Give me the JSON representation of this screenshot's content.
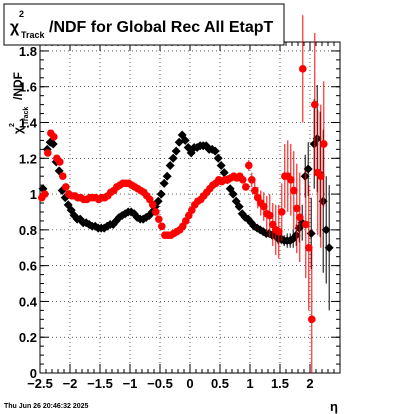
{
  "chart_data": {
    "type": "scatter",
    "title": {
      "chi": "χ",
      "sup": "2",
      "sub": "Track",
      "rest": "/NDF for Global Rec All EtapT"
    },
    "ylabel": {
      "chi": "χ",
      "sup": "2",
      "sub": "Track",
      "rest": "/NDF"
    },
    "xlabel": "η",
    "timestamp": "Thu Jun 26 20:46:32 2025",
    "xlim": [
      -2.5,
      2.5
    ],
    "ylim": [
      0,
      1.85
    ],
    "grid": true,
    "x_ticks": [
      {
        "value": -2.5,
        "label": "−2.5"
      },
      {
        "value": -2,
        "label": "−2"
      },
      {
        "value": -1.5,
        "label": "−1.5"
      },
      {
        "value": -1,
        "label": "−1"
      },
      {
        "value": -0.5,
        "label": "−0.5"
      },
      {
        "value": 0,
        "label": "0"
      },
      {
        "value": 0.5,
        "label": "0.5"
      },
      {
        "value": 1,
        "label": "1"
      },
      {
        "value": 1.5,
        "label": "1.5"
      },
      {
        "value": 2,
        "label": "2"
      }
    ],
    "y_ticks": [
      {
        "value": 0,
        "label": "0"
      },
      {
        "value": 0.2,
        "label": "0.2"
      },
      {
        "value": 0.4,
        "label": "0.4"
      },
      {
        "value": 0.6,
        "label": "0.6"
      },
      {
        "value": 0.8,
        "label": "0.8"
      },
      {
        "value": 1,
        "label": "1"
      },
      {
        "value": 1.2,
        "label": "1.2"
      },
      {
        "value": 1.4,
        "label": "1.4"
      },
      {
        "value": 1.6,
        "label": "1.6"
      },
      {
        "value": 1.8,
        "label": "1.8"
      }
    ],
    "series": [
      {
        "color": "#000000",
        "marker": "diamond",
        "x": [
          -2.45,
          -2.38,
          -2.33,
          -2.28,
          -2.23,
          -2.18,
          -2.13,
          -2.08,
          -2.03,
          -1.98,
          -1.93,
          -1.88,
          -1.83,
          -1.78,
          -1.73,
          -1.68,
          -1.63,
          -1.58,
          -1.53,
          -1.48,
          -1.43,
          -1.38,
          -1.33,
          -1.28,
          -1.23,
          -1.18,
          -1.13,
          -1.08,
          -1.03,
          -0.98,
          -0.93,
          -0.88,
          -0.83,
          -0.78,
          -0.73,
          -0.68,
          -0.63,
          -0.58,
          -0.53,
          -0.48,
          -0.43,
          -0.38,
          -0.33,
          -0.28,
          -0.23,
          -0.18,
          -0.13,
          -0.08,
          -0.03,
          0.02,
          0.07,
          0.12,
          0.17,
          0.22,
          0.27,
          0.32,
          0.37,
          0.42,
          0.47,
          0.52,
          0.57,
          0.62,
          0.67,
          0.72,
          0.77,
          0.82,
          0.87,
          0.92,
          0.97,
          1.02,
          1.07,
          1.12,
          1.17,
          1.22,
          1.27,
          1.32,
          1.37,
          1.42,
          1.47,
          1.52,
          1.57,
          1.62,
          1.67,
          1.72,
          1.77,
          1.82,
          1.87,
          1.92,
          1.97,
          2.02,
          2.07,
          2.12,
          2.17,
          2.22,
          2.27,
          2.32
        ],
        "y": [
          1.03,
          1.25,
          1.29,
          1.28,
          1.18,
          1.13,
          1.02,
          0.98,
          0.94,
          0.91,
          0.88,
          0.86,
          0.86,
          0.84,
          0.84,
          0.83,
          0.82,
          0.82,
          0.81,
          0.81,
          0.81,
          0.82,
          0.83,
          0.83,
          0.85,
          0.87,
          0.88,
          0.89,
          0.9,
          0.9,
          0.89,
          0.87,
          0.86,
          0.86,
          0.87,
          0.88,
          0.9,
          0.93,
          0.96,
          1.0,
          1.06,
          1.1,
          1.16,
          1.2,
          1.24,
          1.29,
          1.33,
          1.3,
          1.26,
          1.23,
          1.26,
          1.26,
          1.27,
          1.27,
          1.27,
          1.25,
          1.25,
          1.24,
          1.2,
          1.16,
          1.12,
          1.08,
          1.03,
          1.0,
          0.96,
          0.93,
          0.89,
          0.87,
          0.86,
          0.84,
          0.82,
          0.81,
          0.8,
          0.79,
          0.78,
          0.78,
          0.77,
          0.77,
          0.75,
          0.75,
          0.74,
          0.74,
          0.74,
          0.75,
          0.77,
          0.81,
          0.84,
          1.1,
          1.14,
          0.78,
          1.28,
          1.31,
          1.11,
          0.96,
          0.8,
          0.7
        ],
        "err": [
          0,
          0,
          0,
          0,
          0,
          0,
          0,
          0,
          0,
          0,
          0,
          0,
          0,
          0,
          0,
          0,
          0,
          0,
          0,
          0,
          0,
          0,
          0,
          0,
          0,
          0,
          0,
          0,
          0,
          0,
          0,
          0,
          0,
          0,
          0,
          0,
          0,
          0,
          0,
          0,
          0,
          0,
          0,
          0,
          0,
          0,
          0,
          0,
          0,
          0,
          0,
          0,
          0,
          0,
          0,
          0,
          0,
          0,
          0,
          0,
          0,
          0,
          0,
          0,
          0,
          0,
          0,
          0,
          0,
          0,
          0,
          0,
          0,
          0,
          0,
          0.02,
          0.02,
          0.03,
          0.03,
          0.03,
          0.03,
          0.04,
          0.04,
          0.05,
          0.06,
          0.08,
          0.1,
          0.12,
          0.15,
          0.2,
          0.25,
          0.3,
          0.35,
          0.4,
          0.3,
          0.35
        ]
      },
      {
        "color": "#ff0000",
        "marker": "circle",
        "x": [
          -2.47,
          -2.42,
          -2.37,
          -2.32,
          -2.27,
          -2.22,
          -2.17,
          -2.12,
          -2.07,
          -2.02,
          -1.97,
          -1.92,
          -1.87,
          -1.82,
          -1.77,
          -1.72,
          -1.67,
          -1.62,
          -1.57,
          -1.52,
          -1.47,
          -1.42,
          -1.37,
          -1.32,
          -1.27,
          -1.22,
          -1.17,
          -1.12,
          -1.07,
          -1.02,
          -0.97,
          -0.92,
          -0.87,
          -0.82,
          -0.77,
          -0.72,
          -0.67,
          -0.62,
          -0.57,
          -0.52,
          -0.47,
          -0.42,
          -0.37,
          -0.32,
          -0.27,
          -0.22,
          -0.17,
          -0.12,
          -0.07,
          -0.02,
          0.03,
          0.08,
          0.13,
          0.18,
          0.23,
          0.28,
          0.33,
          0.38,
          0.43,
          0.48,
          0.53,
          0.58,
          0.63,
          0.68,
          0.73,
          0.78,
          0.83,
          0.88,
          0.93,
          0.98,
          1.03,
          1.08,
          1.13,
          1.18,
          1.23,
          1.28,
          1.33,
          1.38,
          1.43,
          1.48,
          1.53,
          1.58,
          1.63,
          1.68,
          1.73,
          1.78,
          1.83,
          1.88,
          1.93,
          1.98,
          2.03,
          2.08,
          2.13,
          2.18,
          2.23
        ],
        "y": [
          0.98,
          1.0,
          1.23,
          1.34,
          1.32,
          1.2,
          1.18,
          1.1,
          1.04,
          1.0,
          0.99,
          0.99,
          0.98,
          0.98,
          0.97,
          0.97,
          0.98,
          0.98,
          0.98,
          0.97,
          0.98,
          0.98,
          0.99,
          1.01,
          1.02,
          1.04,
          1.05,
          1.06,
          1.06,
          1.06,
          1.05,
          1.04,
          1.03,
          1.02,
          1.01,
          0.99,
          0.97,
          0.94,
          0.9,
          0.86,
          0.82,
          0.77,
          0.77,
          0.77,
          0.78,
          0.79,
          0.8,
          0.82,
          0.85,
          0.88,
          0.91,
          0.94,
          0.96,
          0.97,
          0.99,
          1.01,
          1.03,
          1.05,
          1.06,
          1.08,
          1.07,
          1.08,
          1.08,
          1.09,
          1.1,
          1.09,
          1.1,
          1.08,
          1.04,
          1.16,
          1.08,
          1.02,
          0.98,
          0.95,
          0.93,
          0.89,
          0.88,
          0.83,
          0.8,
          0.79,
          0.9,
          1.1,
          1.1,
          1.08,
          1.02,
          0.92,
          0.87,
          1.7,
          0.83,
          0.7,
          0.3,
          1.5,
          1.12,
          1.1,
          1.28
        ],
        "err": [
          0,
          0,
          0,
          0,
          0,
          0,
          0,
          0,
          0,
          0,
          0,
          0,
          0,
          0,
          0,
          0,
          0,
          0,
          0,
          0,
          0,
          0,
          0,
          0,
          0,
          0,
          0,
          0,
          0,
          0,
          0,
          0,
          0,
          0,
          0,
          0,
          0,
          0,
          0,
          0,
          0,
          0,
          0,
          0,
          0,
          0,
          0,
          0,
          0,
          0,
          0,
          0,
          0,
          0,
          0,
          0,
          0,
          0,
          0,
          0,
          0,
          0,
          0,
          0,
          0,
          0,
          0,
          0,
          0.02,
          0.03,
          0.04,
          0.05,
          0.06,
          0.07,
          0.08,
          0.1,
          0.12,
          0.12,
          0.14,
          0.15,
          0.16,
          0.18,
          0.2,
          0.2,
          0.22,
          0.25,
          0.25,
          0.3,
          0.3,
          0.35,
          0.4,
          0.4,
          0.35,
          0.4,
          0.35
        ]
      }
    ]
  }
}
